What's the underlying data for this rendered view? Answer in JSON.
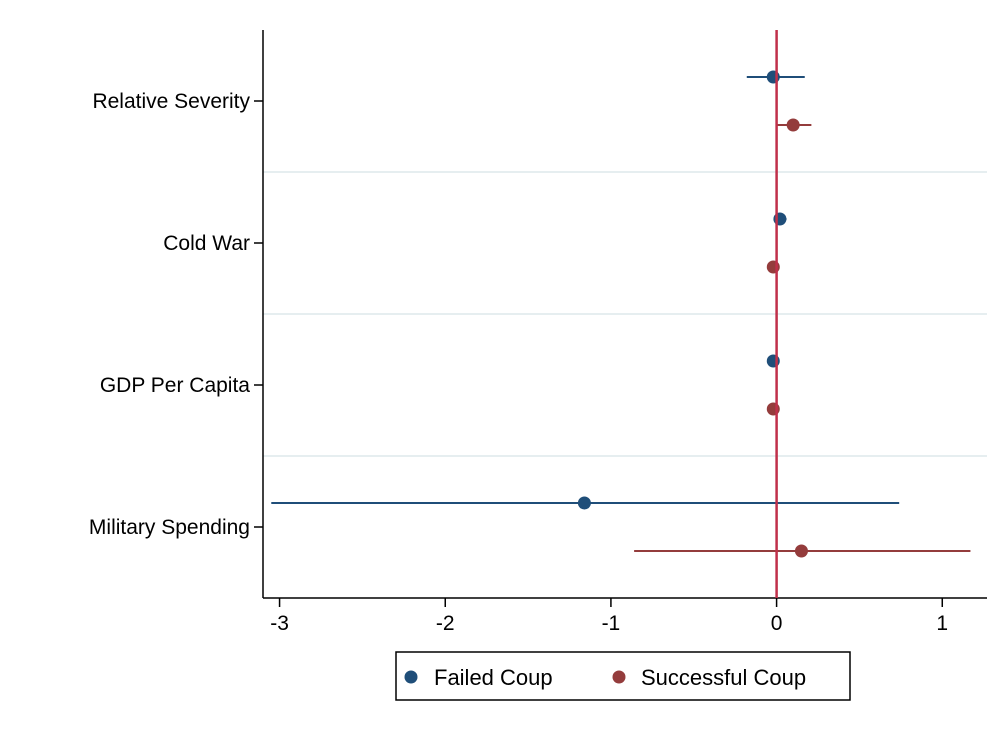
{
  "chart_data": {
    "type": "scatter",
    "subtype": "coefficient-plot",
    "title": "",
    "xlabel": "",
    "ylabel": "",
    "categories": [
      "Relative Severity",
      "Cold War",
      "GDP Per Capita",
      "Military Spending"
    ],
    "xlim": [
      -3.1,
      1.27
    ],
    "xticks": [
      -3,
      -2,
      -1,
      0,
      1
    ],
    "reference_line": 0,
    "grid": "horizontal separators between categories",
    "legend": "bottom-center",
    "series": [
      {
        "name": "Failed Coup",
        "color": "#1f4e79",
        "points": [
          {
            "category": "Relative Severity",
            "estimate": -0.02,
            "ci": [
              -0.18,
              0.17
            ]
          },
          {
            "category": "Cold War",
            "estimate": 0.02,
            "ci": [
              0.0,
              0.06
            ]
          },
          {
            "category": "GDP Per Capita",
            "estimate": -0.02,
            "ci": [
              -0.03,
              -0.01
            ]
          },
          {
            "category": "Military Spending",
            "estimate": -1.16,
            "ci": [
              -3.05,
              0.74
            ]
          }
        ]
      },
      {
        "name": "Successful Coup",
        "color": "#943c3c",
        "points": [
          {
            "category": "Relative Severity",
            "estimate": 0.1,
            "ci": [
              0.0,
              0.21
            ]
          },
          {
            "category": "Cold War",
            "estimate": -0.02,
            "ci": [
              -0.03,
              -0.01
            ]
          },
          {
            "category": "GDP Per Capita",
            "estimate": -0.02,
            "ci": [
              -0.03,
              -0.01
            ]
          },
          {
            "category": "Military Spending",
            "estimate": 0.15,
            "ci": [
              -0.86,
              1.17
            ]
          }
        ]
      }
    ],
    "reference_line_color": "#c0304a"
  }
}
